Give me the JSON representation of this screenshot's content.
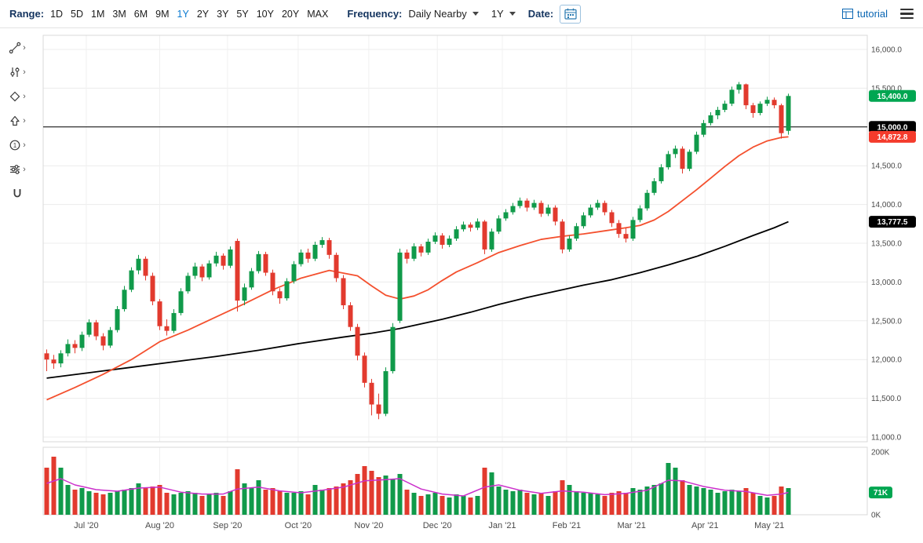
{
  "toolbar": {
    "range_label": "Range:",
    "range_options": [
      "1D",
      "5D",
      "1M",
      "3M",
      "6M",
      "9M",
      "1Y",
      "2Y",
      "3Y",
      "5Y",
      "10Y",
      "20Y",
      "MAX"
    ],
    "range_selected": "1Y",
    "frequency_label": "Frequency:",
    "frequency_value": "Daily Nearby",
    "period_value": "1Y",
    "date_label": "Date:",
    "tutorial_label": "tutorial"
  },
  "icons": {
    "chevron_right": "›"
  },
  "side_toolbar": {
    "tools": [
      "trendline",
      "indicators",
      "shapes",
      "arrow",
      "annotations",
      "sliders",
      "magnet"
    ]
  },
  "colors": {
    "up": "#109a4a",
    "down": "#e23a2e",
    "red_ma": "#f4502e",
    "black_ma": "#000000",
    "volume_ma": "#cb30cb",
    "badge_green": "#00a651",
    "badge_red": "#f43b2c",
    "badge_black": "#000000",
    "accent_blue": "#0a7ad1"
  },
  "chart_data": {
    "type": "candlestick",
    "ylim": [
      11000,
      16000
    ],
    "y_ticks": [
      {
        "label": "16,000.0",
        "value": 16000
      },
      {
        "label": "15,500.0",
        "value": 15500
      },
      {
        "label": "15,000.0",
        "value": 15000
      },
      {
        "label": "14,500.0",
        "value": 14500
      },
      {
        "label": "14,000.0",
        "value": 14000
      },
      {
        "label": "13,500.0",
        "value": 13500
      },
      {
        "label": "13,000.0",
        "value": 13000
      },
      {
        "label": "12,500.0",
        "value": 12500
      },
      {
        "label": "12,000.0",
        "value": 12000
      },
      {
        "label": "11,500.0",
        "value": 11500
      },
      {
        "label": "11,000.0",
        "value": 11000
      }
    ],
    "x_ticks": [
      {
        "label": "Jul '20",
        "index": 5.6
      },
      {
        "label": "Aug '20",
        "index": 16.0
      },
      {
        "label": "Sep '20",
        "index": 25.6
      },
      {
        "label": "Oct '20",
        "index": 35.6
      },
      {
        "label": "Nov '20",
        "index": 45.6
      },
      {
        "label": "Dec '20",
        "index": 55.3
      },
      {
        "label": "Jan '21",
        "index": 64.5
      },
      {
        "label": "Feb '21",
        "index": 73.6
      },
      {
        "label": "Mar '21",
        "index": 82.8
      },
      {
        "label": "Apr '21",
        "index": 93.2
      },
      {
        "label": "May '21",
        "index": 102.3
      }
    ],
    "candles": [
      [
        12080,
        12130,
        11850,
        12000,
        150
      ],
      [
        12000,
        12060,
        11880,
        11950,
        185
      ],
      [
        11950,
        12120,
        11900,
        12080,
        150
      ],
      [
        12080,
        12260,
        12040,
        12200,
        95
      ],
      [
        12200,
        12250,
        12080,
        12150,
        80
      ],
      [
        12150,
        12360,
        12110,
        12320,
        85
      ],
      [
        12320,
        12520,
        12290,
        12480,
        75
      ],
      [
        12480,
        12510,
        12250,
        12300,
        70
      ],
      [
        12300,
        12340,
        12120,
        12180,
        65
      ],
      [
        12180,
        12420,
        12150,
        12380,
        70
      ],
      [
        12380,
        12690,
        12350,
        12650,
        75
      ],
      [
        12650,
        12950,
        12620,
        12900,
        80
      ],
      [
        12900,
        13190,
        12870,
        13150,
        85
      ],
      [
        13150,
        13350,
        13100,
        13300,
        100
      ],
      [
        13300,
        13330,
        13020,
        13080,
        85
      ],
      [
        13080,
        13120,
        12700,
        12750,
        90
      ],
      [
        12750,
        12780,
        12380,
        12430,
        95
      ],
      [
        12430,
        12520,
        12310,
        12370,
        70
      ],
      [
        12370,
        12650,
        12340,
        12600,
        65
      ],
      [
        12600,
        12920,
        12570,
        12880,
        70
      ],
      [
        12880,
        13120,
        12850,
        13080,
        75
      ],
      [
        13080,
        13250,
        13040,
        13200,
        70
      ],
      [
        13200,
        13230,
        13010,
        13060,
        60
      ],
      [
        13060,
        13280,
        13030,
        13240,
        65
      ],
      [
        13240,
        13390,
        13200,
        13340,
        70
      ],
      [
        13340,
        13370,
        13160,
        13210,
        60
      ],
      [
        13210,
        13460,
        13180,
        13420,
        75
      ],
      [
        13530,
        13560,
        12620,
        12760,
        145
      ],
      [
        12760,
        12980,
        12700,
        12930,
        100
      ],
      [
        12930,
        13180,
        12900,
        13140,
        85
      ],
      [
        13140,
        13400,
        13110,
        13360,
        110
      ],
      [
        13360,
        13390,
        13080,
        13120,
        80
      ],
      [
        13120,
        13160,
        12830,
        12880,
        85
      ],
      [
        12880,
        12920,
        12720,
        12790,
        75
      ],
      [
        12790,
        13050,
        12760,
        13010,
        70
      ],
      [
        13010,
        13270,
        12980,
        13230,
        70
      ],
      [
        13230,
        13420,
        13200,
        13380,
        75
      ],
      [
        13380,
        13430,
        13250,
        13300,
        65
      ],
      [
        13300,
        13520,
        13270,
        13480,
        95
      ],
      [
        13480,
        13580,
        13440,
        13540,
        80
      ],
      [
        13540,
        13570,
        13300,
        13350,
        85
      ],
      [
        13350,
        13380,
        13000,
        13050,
        90
      ],
      [
        13050,
        13090,
        12650,
        12700,
        100
      ],
      [
        12700,
        12740,
        12370,
        12420,
        110
      ],
      [
        12420,
        12460,
        11990,
        12050,
        130
      ],
      [
        12050,
        12090,
        11640,
        11700,
        155
      ],
      [
        11700,
        11750,
        11280,
        11420,
        140
      ],
      [
        11420,
        11560,
        11230,
        11300,
        120
      ],
      [
        11300,
        11900,
        11270,
        11850,
        125
      ],
      [
        11850,
        12470,
        11820,
        12420,
        115
      ],
      [
        12500,
        13430,
        12470,
        13380,
        130
      ],
      [
        13380,
        13420,
        13240,
        13300,
        80
      ],
      [
        13300,
        13500,
        13270,
        13460,
        70
      ],
      [
        13460,
        13490,
        13330,
        13380,
        60
      ],
      [
        13380,
        13560,
        13350,
        13520,
        65
      ],
      [
        13520,
        13640,
        13490,
        13600,
        70
      ],
      [
        13600,
        13630,
        13430,
        13480,
        60
      ],
      [
        13480,
        13600,
        13450,
        13560,
        55
      ],
      [
        13560,
        13720,
        13530,
        13680,
        65
      ],
      [
        13680,
        13780,
        13650,
        13740,
        60
      ],
      [
        13740,
        13770,
        13650,
        13700,
        55
      ],
      [
        13700,
        13820,
        13670,
        13780,
        60
      ],
      [
        13780,
        13800,
        13360,
        13420,
        150
      ],
      [
        13420,
        13690,
        13390,
        13650,
        135
      ],
      [
        13650,
        13860,
        13620,
        13820,
        90
      ],
      [
        13820,
        13940,
        13790,
        13900,
        80
      ],
      [
        13900,
        14020,
        13870,
        13980,
        75
      ],
      [
        13980,
        14090,
        13950,
        14050,
        80
      ],
      [
        14050,
        14080,
        13910,
        13960,
        70
      ],
      [
        13960,
        14060,
        13930,
        14020,
        65
      ],
      [
        14020,
        14050,
        13840,
        13880,
        70
      ],
      [
        13880,
        14000,
        13850,
        13960,
        60
      ],
      [
        13960,
        13990,
        13730,
        13780,
        75
      ],
      [
        13780,
        13810,
        13370,
        13420,
        110
      ],
      [
        13420,
        13600,
        13390,
        13560,
        95
      ],
      [
        13560,
        13760,
        13530,
        13720,
        75
      ],
      [
        13720,
        13900,
        13690,
        13860,
        70
      ],
      [
        13860,
        14000,
        13830,
        13960,
        70
      ],
      [
        13960,
        14060,
        13930,
        14020,
        65
      ],
      [
        14020,
        14050,
        13860,
        13900,
        60
      ],
      [
        13900,
        13930,
        13710,
        13760,
        70
      ],
      [
        13760,
        13800,
        13570,
        13620,
        75
      ],
      [
        13620,
        13700,
        13510,
        13560,
        70
      ],
      [
        13560,
        13840,
        13530,
        13800,
        85
      ],
      [
        13800,
        13990,
        13770,
        13950,
        80
      ],
      [
        13950,
        14190,
        13920,
        14150,
        90
      ],
      [
        14150,
        14340,
        14120,
        14300,
        95
      ],
      [
        14300,
        14520,
        14270,
        14480,
        100
      ],
      [
        14480,
        14690,
        14450,
        14650,
        165
      ],
      [
        14650,
        14760,
        14600,
        14720,
        150
      ],
      [
        14720,
        14750,
        14400,
        14460,
        110
      ],
      [
        14460,
        14710,
        14430,
        14680,
        95
      ],
      [
        14680,
        14940,
        14650,
        14900,
        90
      ],
      [
        14900,
        15090,
        14870,
        15050,
        85
      ],
      [
        15050,
        15190,
        15020,
        15150,
        80
      ],
      [
        15150,
        15260,
        15100,
        15220,
        70
      ],
      [
        15220,
        15340,
        15190,
        15300,
        75
      ],
      [
        15300,
        15520,
        15270,
        15480,
        80
      ],
      [
        15480,
        15580,
        15430,
        15550,
        75
      ],
      [
        15550,
        15560,
        15230,
        15280,
        85
      ],
      [
        15280,
        15310,
        15120,
        15180,
        70
      ],
      [
        15180,
        15330,
        15150,
        15300,
        60
      ],
      [
        15300,
        15390,
        15270,
        15350,
        55
      ],
      [
        15350,
        15380,
        15240,
        15280,
        60
      ],
      [
        15280,
        15300,
        14850,
        14920,
        90
      ],
      [
        14950,
        15430,
        14900,
        15400,
        85
      ]
    ],
    "overlays": {
      "red_ma": {
        "color": "#f4502e",
        "points": [
          [
            0,
            11480
          ],
          [
            4,
            11640
          ],
          [
            8,
            11810
          ],
          [
            12,
            12000
          ],
          [
            16,
            12230
          ],
          [
            20,
            12380
          ],
          [
            24,
            12550
          ],
          [
            28,
            12720
          ],
          [
            32,
            12900
          ],
          [
            36,
            13050
          ],
          [
            40,
            13150
          ],
          [
            44,
            13080
          ],
          [
            46,
            12950
          ],
          [
            48,
            12830
          ],
          [
            50,
            12780
          ],
          [
            52,
            12820
          ],
          [
            54,
            12900
          ],
          [
            56,
            13020
          ],
          [
            58,
            13130
          ],
          [
            61,
            13250
          ],
          [
            64,
            13380
          ],
          [
            67,
            13470
          ],
          [
            70,
            13550
          ],
          [
            73,
            13590
          ],
          [
            76,
            13620
          ],
          [
            79,
            13660
          ],
          [
            82,
            13700
          ],
          [
            84,
            13730
          ],
          [
            86,
            13800
          ],
          [
            88,
            13910
          ],
          [
            90,
            14050
          ],
          [
            92,
            14190
          ],
          [
            94,
            14340
          ],
          [
            96,
            14490
          ],
          [
            98,
            14630
          ],
          [
            100,
            14740
          ],
          [
            102,
            14820
          ],
          [
            104,
            14865
          ],
          [
            105,
            14872.8
          ]
        ]
      },
      "black_ma": {
        "color": "#000000",
        "points": [
          [
            0,
            11760
          ],
          [
            6,
            11830
          ],
          [
            12,
            11900
          ],
          [
            18,
            11970
          ],
          [
            24,
            12040
          ],
          [
            30,
            12120
          ],
          [
            36,
            12210
          ],
          [
            42,
            12290
          ],
          [
            46,
            12340
          ],
          [
            50,
            12400
          ],
          [
            56,
            12520
          ],
          [
            60,
            12610
          ],
          [
            64,
            12710
          ],
          [
            68,
            12800
          ],
          [
            72,
            12880
          ],
          [
            76,
            12960
          ],
          [
            80,
            13030
          ],
          [
            84,
            13120
          ],
          [
            88,
            13220
          ],
          [
            92,
            13330
          ],
          [
            96,
            13460
          ],
          [
            100,
            13600
          ],
          [
            103,
            13700
          ],
          [
            105,
            13777.5
          ]
        ]
      },
      "horizontal_line": {
        "value": 15000,
        "label": "15,000.0"
      }
    },
    "volume": {
      "ylim": [
        0,
        200
      ],
      "ticks": [
        {
          "label": "200K",
          "value": 200
        },
        {
          "label": "0K",
          "value": 0
        }
      ],
      "ma_color": "#cb30cb",
      "ma_points": [
        [
          0,
          100
        ],
        [
          2,
          115
        ],
        [
          4,
          95
        ],
        [
          7,
          80
        ],
        [
          10,
          75
        ],
        [
          13,
          85
        ],
        [
          16,
          88
        ],
        [
          19,
          72
        ],
        [
          22,
          66
        ],
        [
          25,
          66
        ],
        [
          27,
          82
        ],
        [
          30,
          88
        ],
        [
          33,
          76
        ],
        [
          36,
          70
        ],
        [
          39,
          78
        ],
        [
          42,
          88
        ],
        [
          45,
          108
        ],
        [
          48,
          112
        ],
        [
          50,
          115
        ],
        [
          53,
          82
        ],
        [
          56,
          66
        ],
        [
          59,
          60
        ],
        [
          62,
          88
        ],
        [
          64,
          95
        ],
        [
          67,
          78
        ],
        [
          70,
          68
        ],
        [
          73,
          76
        ],
        [
          76,
          72
        ],
        [
          79,
          64
        ],
        [
          82,
          68
        ],
        [
          85,
          78
        ],
        [
          88,
          110
        ],
        [
          90,
          108
        ],
        [
          93,
          90
        ],
        [
          96,
          78
        ],
        [
          99,
          74
        ],
        [
          102,
          62
        ],
        [
          104,
          66
        ],
        [
          105,
          71
        ]
      ],
      "last_label": "71K"
    },
    "badges": [
      {
        "text": "15,400.0",
        "value": 15400,
        "panel": "price",
        "color": "#00a651"
      },
      {
        "text": "15,000.0",
        "value": 15000,
        "panel": "price",
        "color": "#000000"
      },
      {
        "text": "14,872.8",
        "value": 14872.8,
        "panel": "price",
        "color": "#f43b2c"
      },
      {
        "text": "13,777.5",
        "value": 13777.5,
        "panel": "price",
        "color": "#000000"
      },
      {
        "text": "71K",
        "value": 71,
        "panel": "volume",
        "color": "#00a651"
      }
    ]
  }
}
